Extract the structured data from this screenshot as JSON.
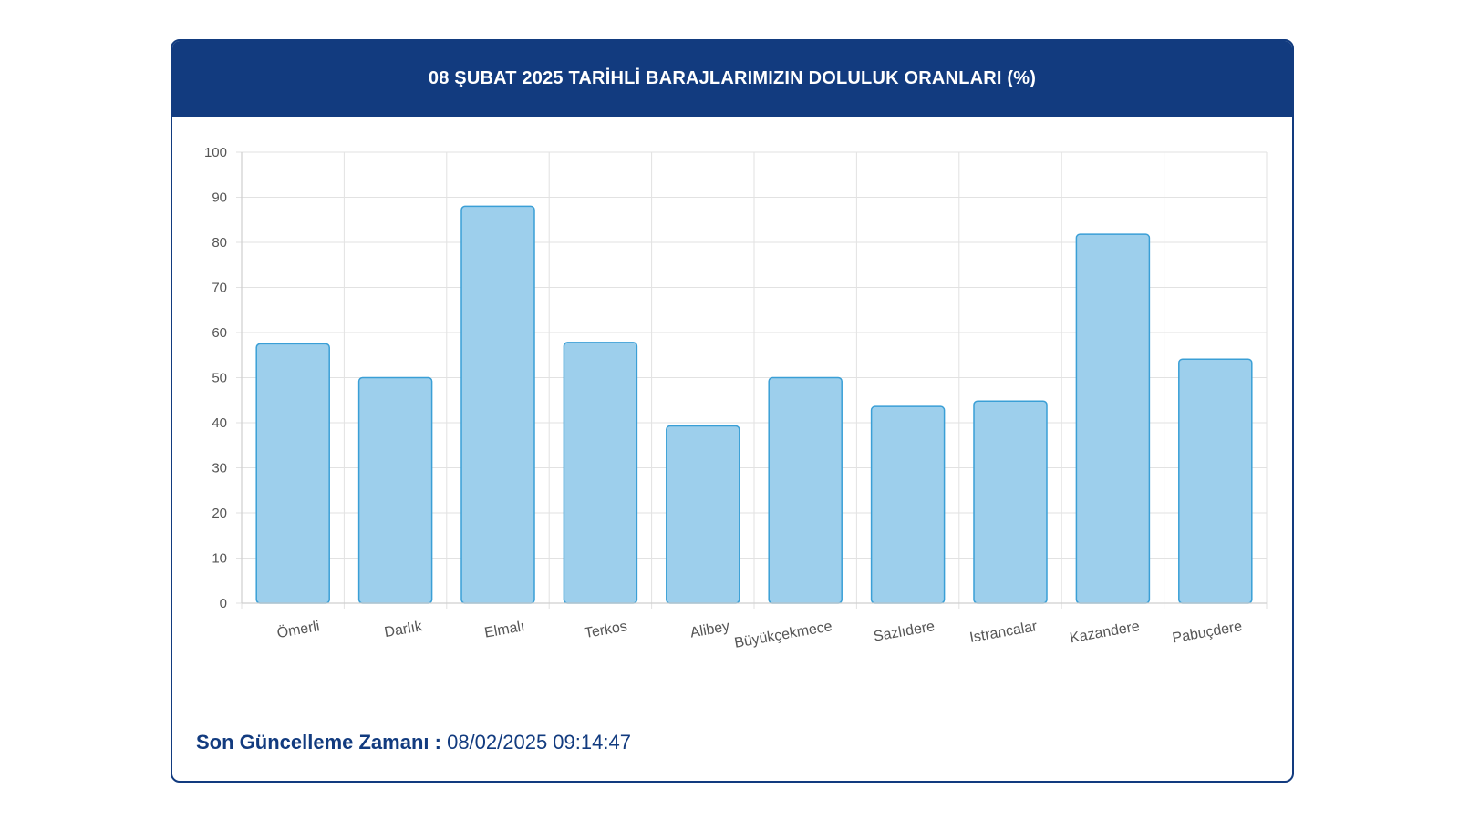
{
  "card": {
    "title": "08 ŞUBAT 2025 TARİHLİ BARAJLARIMIZIN DOLULUK ORANLARI (%)"
  },
  "footer": {
    "label": "Son Güncelleme Zamanı :",
    "value": "08/02/2025 09:14:47"
  },
  "colors": {
    "header": "#123b7f",
    "bar_fill": "#9dcfec",
    "bar_stroke": "#3a9fd6",
    "grid": "#e2e2e2",
    "tick_text": "#555555"
  },
  "chart_data": {
    "type": "bar",
    "title": "08 ŞUBAT 2025 TARİHLİ BARAJLARIMIZIN DOLULUK ORANLARI (%)",
    "categories": [
      "Ömerli",
      "Darlık",
      "Elmalı",
      "Terkos",
      "Alibey",
      "Büyükçekmece",
      "Sazlıdere",
      "Istrancalar",
      "Kazandere",
      "Pabuçdere"
    ],
    "values": [
      57.5,
      50.0,
      88.0,
      57.8,
      39.3,
      50.0,
      43.6,
      44.8,
      81.8,
      54.1
    ],
    "xlabel": "",
    "ylabel": "",
    "ylim": [
      0,
      100
    ],
    "yticks": [
      0,
      10,
      20,
      30,
      40,
      50,
      60,
      70,
      80,
      90,
      100
    ],
    "grid": true,
    "legend": "none"
  }
}
